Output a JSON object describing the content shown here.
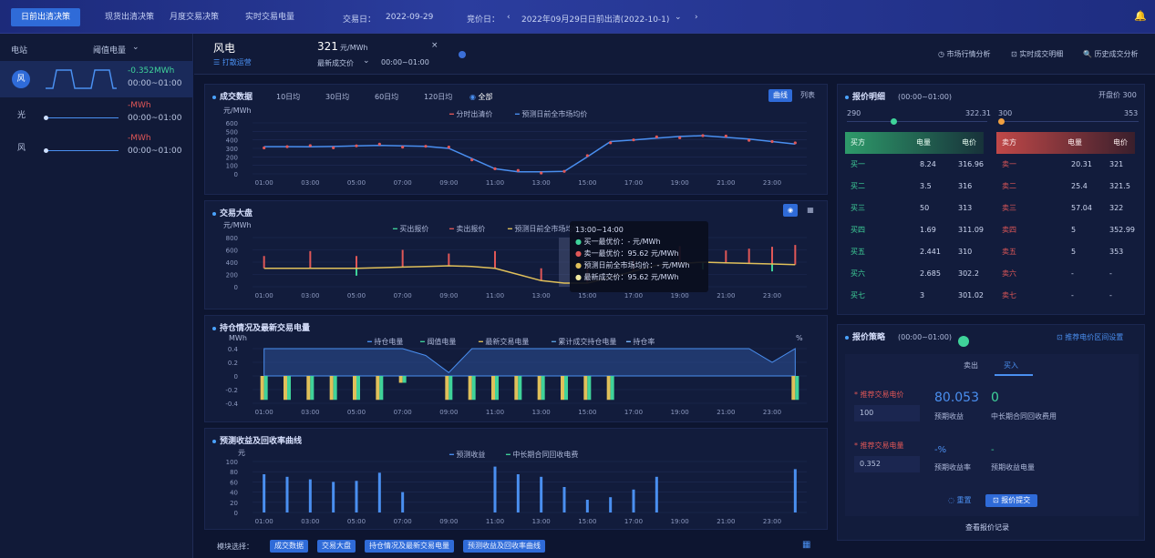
{
  "tabs": [
    "日前出清决策",
    "现货出清决策",
    "月度交易决策",
    "实时交易电量"
  ],
  "header": {
    "trade_day_label": "交易日：",
    "trade_day": "2022-09-29",
    "bid_day_label": "竞价日：",
    "bid_select": "2022年09月29日日前出清(2022-10-1)"
  },
  "left": {
    "col1": "电站",
    "col2": "阈值电量",
    "items": [
      {
        "label": "风",
        "value": "-0.352MWh",
        "time": "00:00~01:00",
        "color": "#3fd39a"
      },
      {
        "label": "光",
        "value": "-MWh",
        "time": "00:00~01:00",
        "color": "#e05757"
      },
      {
        "label": "风",
        "value": "-MWh",
        "time": "00:00~01:00",
        "color": "#e05757"
      }
    ]
  },
  "main_head": {
    "title": "风电",
    "sub": "☰ 打散运营",
    "price": "321",
    "price_unit": "元/MWh",
    "price_type": "最新成交价",
    "time": "00:00~01:00",
    "actions": [
      "◷ 市场行情分析",
      "⊡ 实时成交明细",
      "🔍 历史成交分析"
    ]
  },
  "p1": {
    "title": "成交数据",
    "filters": [
      "10日均",
      "30日均",
      "60日均",
      "120日均",
      "全部"
    ],
    "toggles": [
      "曲线",
      "列表"
    ],
    "legend": [
      "分时出清价",
      "预测日前全市场均价"
    ],
    "ylabel": "元/MWh"
  },
  "p2": {
    "title": "交易大盘",
    "legend": [
      "买出报价",
      "卖出报价",
      "预测日前全市场均价"
    ],
    "ylabel": "元/MWh",
    "tooltip": {
      "time": "13:00~14:00",
      "lines": [
        "买一最优价：- 元/MWh",
        "卖一最优价：95.62 元/MWh",
        "预测日前全市场均价：- 元/MWh",
        "最新成交价：95.62 元/MWh"
      ]
    }
  },
  "p3": {
    "title": "持仓情况及最新交易电量",
    "legend": [
      "持仓电量",
      "阈值电量",
      "最新交易电量",
      "累计成交持仓电量",
      "持仓率"
    ],
    "ylabel": "MWh",
    "rlabel": "%"
  },
  "p4": {
    "title": "预测收益及回收率曲线",
    "legend": [
      "预测收益",
      "中长期合同回收电费"
    ],
    "ylabel": "元"
  },
  "bottom": {
    "label": "模块选择：",
    "buttons": [
      "成交数据",
      "交易大盘",
      "持仓情况及最新交易电量",
      "预测收益及回收率曲线"
    ]
  },
  "right1": {
    "title": "报价明细",
    "time": "(00:00~01:00)",
    "total": "开盘价 300",
    "range_left": [
      "290",
      "322.31"
    ],
    "range_right": [
      "300",
      "353"
    ],
    "buy_head": [
      "买方",
      "电量",
      "电价"
    ],
    "sell_head": [
      "卖方",
      "电量",
      "电价"
    ],
    "buy": [
      [
        "买一",
        "8.24",
        "316.96"
      ],
      [
        "买二",
        "3.5",
        "316"
      ],
      [
        "买三",
        "50",
        "313"
      ],
      [
        "买四",
        "1.69",
        "311.09"
      ],
      [
        "买五",
        "2.441",
        "310"
      ],
      [
        "买六",
        "2.685",
        "302.2"
      ],
      [
        "买七",
        "3",
        "301.02"
      ]
    ],
    "sell": [
      [
        "卖一",
        "20.31",
        "321"
      ],
      [
        "卖二",
        "25.4",
        "321.5"
      ],
      [
        "卖三",
        "57.04",
        "322"
      ],
      [
        "卖四",
        "5",
        "352.99"
      ],
      [
        "卖五",
        "5",
        "353"
      ],
      [
        "卖六",
        "-",
        "-"
      ],
      [
        "卖七",
        "-",
        "-"
      ]
    ]
  },
  "right2": {
    "title": "报价策略",
    "time": "(00:00~01:00)",
    "setting": "⊡ 推荐电价区间设置",
    "tabs": [
      "卖出",
      "买入"
    ],
    "f1_label": "* 推荐交易电价",
    "f1_value": "100",
    "big": "80.053",
    "zero": "0",
    "k1": "预期收益",
    "k2": "中长期合同回收费用",
    "f2_label": "* 推荐交易电量",
    "f2_value": "0.352",
    "dash1": "-%",
    "dash2": "-",
    "k3": "预期收益率",
    "k4": "预期收益电量",
    "reset": "◌ 重置",
    "submit": "⊡ 报价提交",
    "record": "查看报价记录"
  },
  "xticks": [
    "01:00",
    "03:00",
    "05:00",
    "07:00",
    "09:00",
    "11:00",
    "13:00",
    "15:00",
    "17:00",
    "19:00",
    "21:00",
    "23:00"
  ],
  "chart_data": [
    {
      "type": "line",
      "title": "成交数据",
      "ylabel": "元/MWh",
      "ylim": [
        0,
        600
      ],
      "series": [
        {
          "name": "预测日前全市场均价",
          "values": [
            320,
            320,
            318,
            322,
            330,
            335,
            330,
            325,
            300,
            180,
            60,
            25,
            25,
            30,
            200,
            380,
            400,
            420,
            440,
            450,
            430,
            410,
            380,
            350
          ]
        }
      ]
    },
    {
      "type": "line",
      "title": "交易大盘",
      "ylabel": "元/MWh",
      "ylim": [
        0,
        800
      ],
      "series": [
        {
          "name": "预测日前全市场均价",
          "values": [
            300,
            300,
            300,
            300,
            300,
            310,
            320,
            330,
            340,
            330,
            300,
            200,
            100,
            60,
            60,
            150,
            250,
            350,
            380,
            400,
            390,
            380,
            370,
            360
          ]
        }
      ]
    },
    {
      "type": "bar",
      "title": "持仓情况及最新交易电量",
      "ylabel": "MWh",
      "ylim": [
        -0.4,
        0.4
      ],
      "series": [
        {
          "name": "阈值电量",
          "values": [
            -0.35,
            -0.35,
            -0.35,
            -0.35,
            -0.35,
            -0.35,
            -0.1,
            0,
            -0.35,
            -0.35,
            -0.35,
            -0.35,
            -0.35,
            -0.35,
            -0.35,
            -0.35,
            0,
            0,
            0,
            0,
            0,
            0,
            0,
            -0.35
          ]
        }
      ]
    },
    {
      "type": "bar",
      "title": "预测收益及回收率曲线",
      "ylabel": "元",
      "ylim": [
        0,
        100
      ],
      "series": [
        {
          "name": "预测收益",
          "values": [
            75,
            70,
            65,
            60,
            62,
            78,
            40,
            0,
            0,
            0,
            90,
            75,
            70,
            50,
            25,
            30,
            45,
            70,
            0,
            0,
            0,
            0,
            0,
            85
          ]
        }
      ]
    }
  ]
}
